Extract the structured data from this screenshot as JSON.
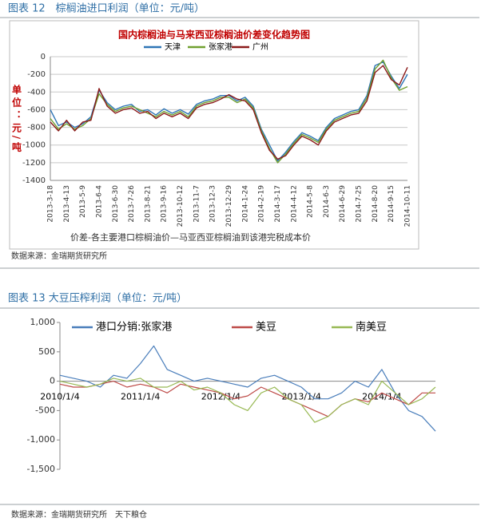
{
  "chart_data": [
    {
      "type": "line",
      "heading": "图表 12　棕榈油进口利润（单位：元/吨）",
      "title": "国内棕榈油与马来西亚棕榈油价差变化趋势图",
      "y_label": "单位：元/吨",
      "note": "价差-各主要港口棕榈油价—马亚西亚棕榈油到该港完税成本价",
      "source": "数据来源：金瑞期货研究所",
      "categories": [
        "2013-3-18",
        null,
        "2013-4-13",
        null,
        "2013-5-9",
        null,
        "2013-6-4",
        null,
        "2013-6-30",
        null,
        "2013-7-26",
        null,
        "2013-8-21",
        null,
        "2013-9-16",
        null,
        "2013-10-12",
        null,
        "2013-11-7",
        null,
        "2013-12-3",
        null,
        "2013-12-29",
        null,
        "2014-1-24",
        null,
        "2014-2-19",
        null,
        "2014-3-17",
        null,
        "2014-4-12",
        null,
        "2014-5-8",
        null,
        "2014-6-3",
        null,
        "2014-6-29",
        null,
        "2014-7-25",
        null,
        "2014-8-20",
        null,
        "2014-9-15",
        null,
        "2014-10-11"
      ],
      "series": [
        {
          "name": "天津",
          "color": "#2e75b6",
          "values": [
            -600,
            -780,
            -740,
            -800,
            -760,
            -680,
            -380,
            -520,
            -600,
            -560,
            -540,
            -620,
            -600,
            -660,
            -590,
            -640,
            -600,
            -650,
            -540,
            -500,
            -480,
            -440,
            -440,
            -500,
            -460,
            -560,
            -820,
            -1000,
            -1180,
            -1080,
            -960,
            -860,
            -900,
            -950,
            -800,
            -700,
            -660,
            -620,
            -600,
            -440,
            -100,
            -60,
            -220,
            -360,
            -200
          ]
        },
        {
          "name": "张家港",
          "color": "#70a030",
          "values": [
            -700,
            -820,
            -760,
            -820,
            -780,
            -700,
            -420,
            -540,
            -620,
            -580,
            -560,
            -600,
            -640,
            -680,
            -620,
            -660,
            -620,
            -680,
            -560,
            -520,
            -500,
            -460,
            -460,
            -520,
            -480,
            -580,
            -840,
            -1040,
            -1200,
            -1100,
            -980,
            -880,
            -920,
            -970,
            -820,
            -720,
            -680,
            -640,
            -620,
            -470,
            -140,
            -40,
            -240,
            -380,
            -340
          ]
        },
        {
          "name": "广州",
          "color": "#8b1a1a",
          "values": [
            -740,
            -840,
            -720,
            -840,
            -740,
            -720,
            -360,
            -560,
            -640,
            -600,
            -580,
            -640,
            -620,
            -700,
            -640,
            -680,
            -640,
            -700,
            -580,
            -540,
            -520,
            -480,
            -430,
            -480,
            -500,
            -600,
            -860,
            -1060,
            -1160,
            -1120,
            -1000,
            -900,
            -940,
            -1000,
            -840,
            -740,
            -700,
            -660,
            -640,
            -500,
            -180,
            -100,
            -260,
            -320,
            -120
          ]
        }
      ],
      "ylim": [
        -1400,
        0
      ],
      "yticks": [
        0,
        -200,
        -400,
        -600,
        -800,
        -1000,
        -1200,
        -1400
      ],
      "grid": true
    },
    {
      "type": "line",
      "heading": "图表 13 大豆压榨利润（单位：元/吨）",
      "source": "数据来源：金瑞期货研究所　天下粮仓",
      "categories": [
        "2010/1/4",
        null,
        null,
        null,
        null,
        null,
        "2011/1/4",
        null,
        null,
        null,
        null,
        null,
        "2012/1/4",
        null,
        null,
        null,
        null,
        null,
        "2013/1/4",
        null,
        null,
        null,
        null,
        null,
        "2014/1/4",
        null,
        null,
        null,
        null
      ],
      "series": [
        {
          "name": "港口分销:张家港",
          "color": "#4a7ebb",
          "values": [
            100,
            50,
            0,
            -100,
            100,
            50,
            300,
            600,
            200,
            100,
            0,
            50,
            0,
            -50,
            -100,
            50,
            100,
            0,
            -100,
            -300,
            -300,
            -200,
            0,
            -100,
            200,
            -200,
            -500,
            -600,
            -850
          ]
        },
        {
          "name": "美豆",
          "color": "#be4b48",
          "values": [
            -50,
            -100,
            -100,
            -50,
            0,
            -100,
            -50,
            -100,
            -200,
            -50,
            -100,
            -150,
            -200,
            -300,
            -250,
            -100,
            -200,
            -300,
            -400,
            -500,
            -600,
            -400,
            -300,
            -350,
            -200,
            -300,
            -400,
            -200,
            -200
          ]
        },
        {
          "name": "南美豆",
          "color": "#98b954",
          "values": [
            0,
            -50,
            -100,
            -50,
            50,
            0,
            50,
            -100,
            -100,
            0,
            -150,
            -100,
            -200,
            -400,
            -500,
            -200,
            -100,
            -300,
            -400,
            -700,
            -600,
            -400,
            -300,
            -400,
            0,
            -200,
            -400,
            -300,
            -100
          ]
        }
      ],
      "ylim": [
        -1500,
        1000
      ],
      "yticks": [
        {
          "value": 1000,
          "label": "1,000"
        },
        500,
        0,
        -500,
        {
          "value": -1000,
          "label": "-1,000"
        },
        {
          "value": -1500,
          "label": "-1,500"
        }
      ],
      "grid": false
    }
  ]
}
